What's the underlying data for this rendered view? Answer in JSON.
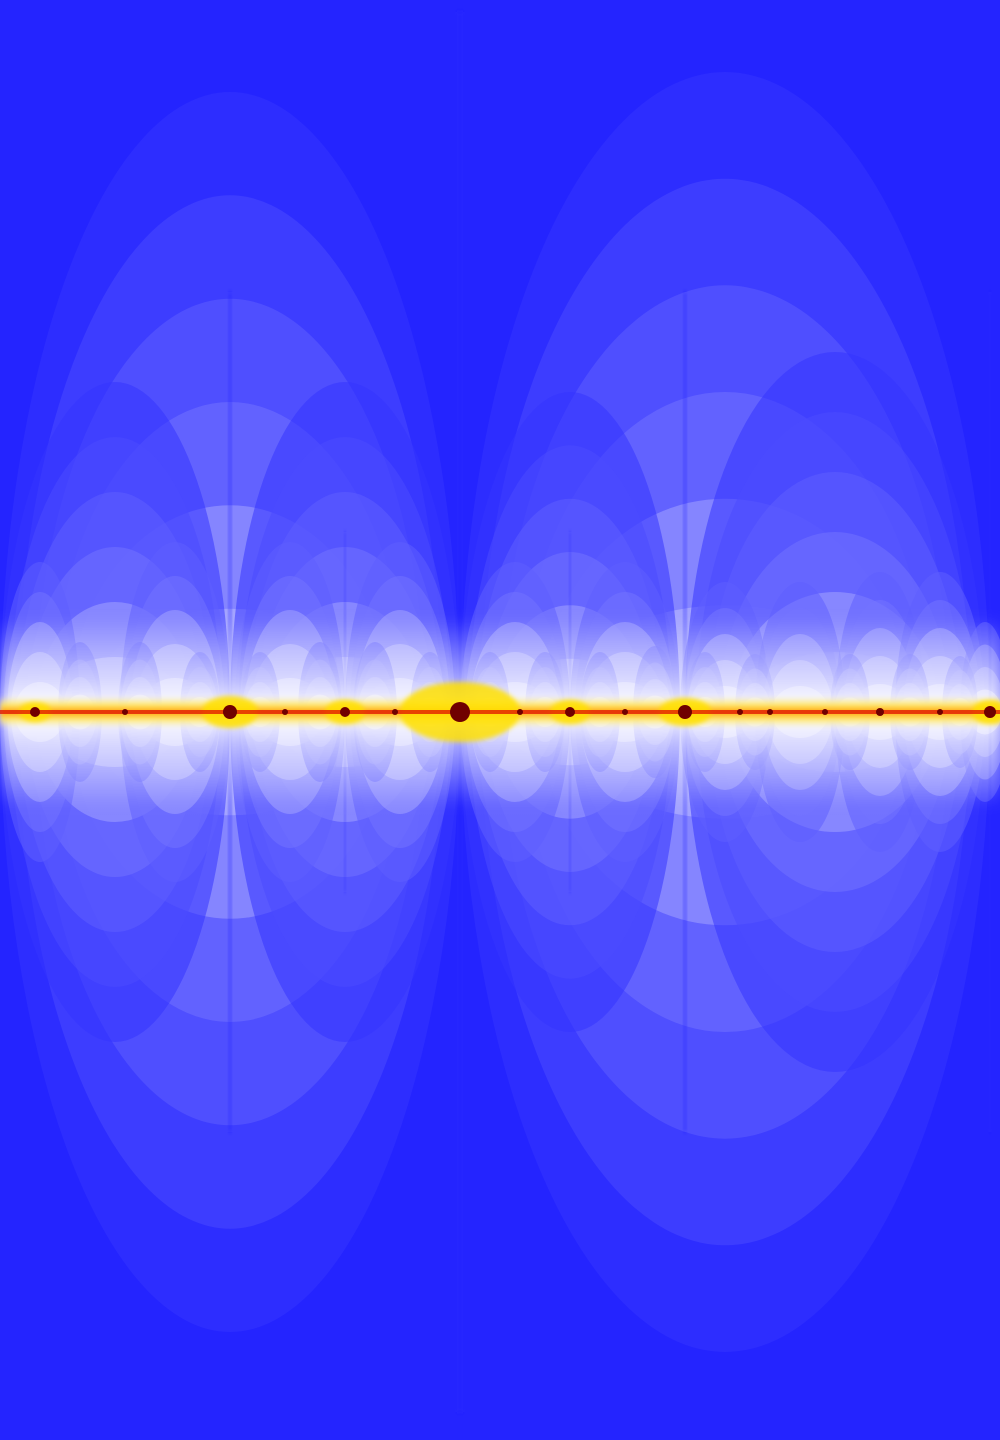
{
  "colors": {
    "background": "#2424ff",
    "band_shade_1": "#3535ff",
    "band_shade_2": "#4a4aff",
    "band_shade_3": "#5e5eff",
    "band_shade_4": "#7373ff",
    "band_shade_5": "#8a8aff",
    "band_shade_6": "#a2a2ff",
    "band_shade_7": "#bcbcff",
    "band_shade_8": "#d8d8ff",
    "band_shade_9": "#f0f0ff",
    "axis_white": "#ffffff",
    "axis_yellow": "#ffe000",
    "axis_orange": "#ff9900",
    "axis_red": "#e01000",
    "node_dark": "#700000"
  }
}
